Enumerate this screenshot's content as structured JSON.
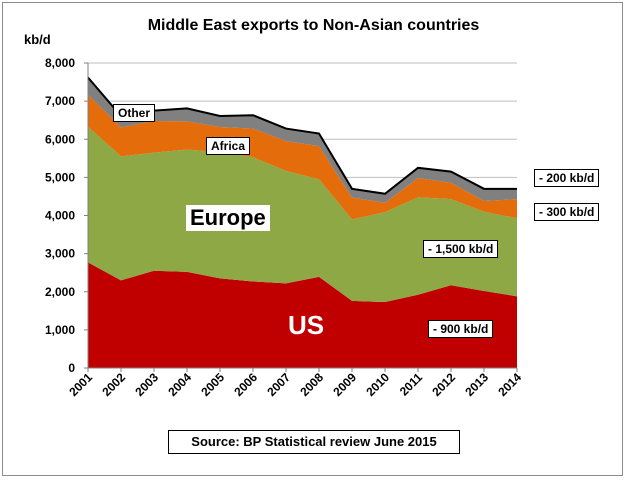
{
  "chart_data": {
    "type": "area",
    "title": "Middle East exports to Non-Asian countries",
    "ylabel": "kb/d",
    "ylim": [
      0,
      8000
    ],
    "yticks": [
      "0",
      "1,000",
      "2,000",
      "3,000",
      "4,000",
      "5,000",
      "6,000",
      "7,000",
      "8,000"
    ],
    "ytick_values": [
      0,
      1000,
      2000,
      3000,
      4000,
      5000,
      6000,
      7000,
      8000
    ],
    "x": [
      "2001",
      "2002",
      "2003",
      "2004",
      "2005",
      "2006",
      "2007",
      "2008",
      "2009",
      "2010",
      "2011",
      "2012",
      "2013",
      "2014"
    ],
    "stacked": true,
    "series": [
      {
        "name": "US",
        "color": "#c00000",
        "values": [
          2770,
          2300,
          2550,
          2520,
          2350,
          2270,
          2220,
          2390,
          1760,
          1730,
          1920,
          2170,
          2020,
          1880
        ]
      },
      {
        "name": "Europe",
        "color": "#8ea845",
        "values": [
          3560,
          3250,
          3100,
          3210,
          3310,
          3260,
          2950,
          2560,
          2140,
          2360,
          2560,
          2260,
          2080,
          2050
        ]
      },
      {
        "name": "Africa",
        "color": "#e46c0a",
        "values": [
          830,
          760,
          830,
          740,
          660,
          750,
          780,
          870,
          570,
          240,
          500,
          430,
          280,
          500
        ]
      },
      {
        "name": "Other",
        "color": "#808080",
        "values": [
          460,
          300,
          270,
          340,
          290,
          350,
          330,
          330,
          230,
          240,
          270,
          290,
          320,
          270
        ]
      }
    ],
    "legend": "none",
    "grid": true
  },
  "labels": {
    "other": "Other",
    "africa": "Africa",
    "europe": "Europe",
    "us": "US",
    "other_change": "- 200 kb/d",
    "africa_change": "- 300 kb/d",
    "europe_change": "- 1,500 kb/d",
    "us_change": "- 900 kb/d"
  },
  "source": "Source: BP Statistical review June 2015"
}
